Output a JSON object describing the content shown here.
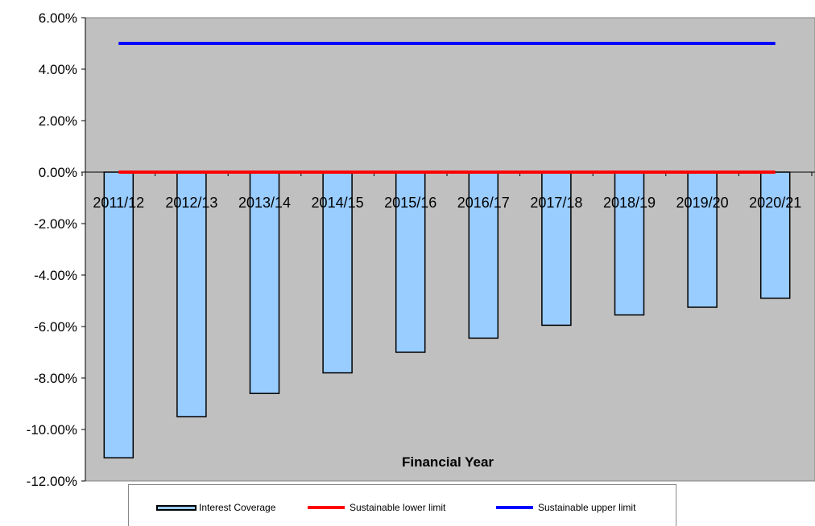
{
  "chart_data": {
    "type": "bar",
    "xlabel": "Financial Year",
    "ylabel": "",
    "title": "",
    "categories": [
      "2011/12",
      "2012/13",
      "2013/14",
      "2014/15",
      "2015/16",
      "2016/17",
      "2017/18",
      "2018/19",
      "2019/20",
      "2020/21"
    ],
    "series": [
      {
        "name": "Interest Coverage",
        "type": "bar",
        "color": "#99CCFF",
        "values": [
          -11.1,
          -9.5,
          -8.6,
          -7.8,
          -7.0,
          -6.45,
          -5.95,
          -5.55,
          -5.25,
          -4.9
        ]
      },
      {
        "name": "Sustainable lower limit",
        "type": "line",
        "color": "#FF0000",
        "values": [
          0,
          0,
          0,
          0,
          0,
          0,
          0,
          0,
          0,
          0
        ]
      },
      {
        "name": "Sustainable upper limit",
        "type": "line",
        "color": "#0000FF",
        "values": [
          5,
          5,
          5,
          5,
          5,
          5,
          5,
          5,
          5,
          5
        ]
      }
    ],
    "ylim": [
      -12,
      6
    ],
    "ytick_step": 2,
    "ytick_labels": [
      "6.00%",
      "4.00%",
      "2.00%",
      "0.00%",
      "-2.00%",
      "-4.00%",
      "-6.00%",
      "-8.00%",
      "-10.00%",
      "-12.00%"
    ],
    "plot_background": "#C0C0C0",
    "grid": false,
    "legend_position": "bottom"
  }
}
